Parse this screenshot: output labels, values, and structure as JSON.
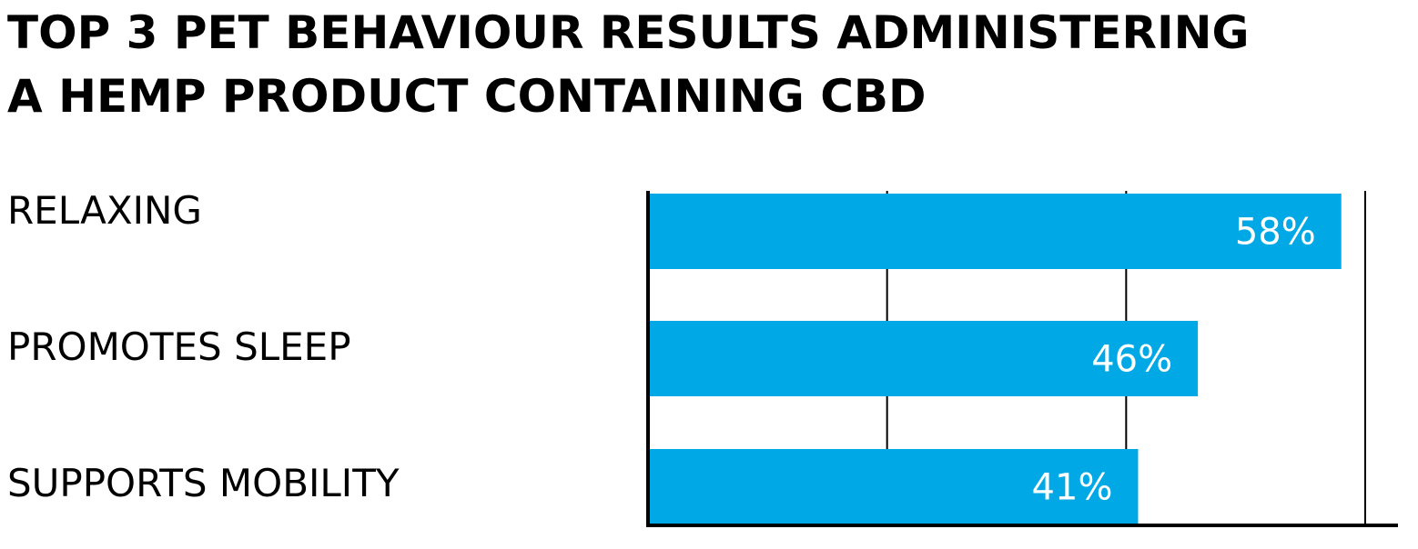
{
  "title_lines": [
    "TOP 3 PET BEHAVIOUR RESULTS ADMINISTERING",
    "A HEMP PRODUCT CONTAINING CBD"
  ],
  "colors": {
    "bar": "#00a9e6",
    "axis": "#000000",
    "grid": "#000000",
    "bar_label": "#ffffff"
  },
  "chart_data": {
    "type": "bar",
    "orientation": "horizontal",
    "title": "TOP 3 PET BEHAVIOUR RESULTS ADMINISTERING A HEMP PRODUCT CONTAINING CBD",
    "categories": [
      "RELAXING",
      "PROMOTES SLEEP",
      "SUPPORTS MOBILITY"
    ],
    "values": [
      58,
      46,
      41
    ],
    "value_labels": [
      "58%",
      "46%",
      "41%"
    ],
    "xlim": [
      0,
      60
    ],
    "gridlines_at": [
      20,
      40,
      60
    ],
    "grid": true,
    "xlabel": "",
    "ylabel": ""
  }
}
